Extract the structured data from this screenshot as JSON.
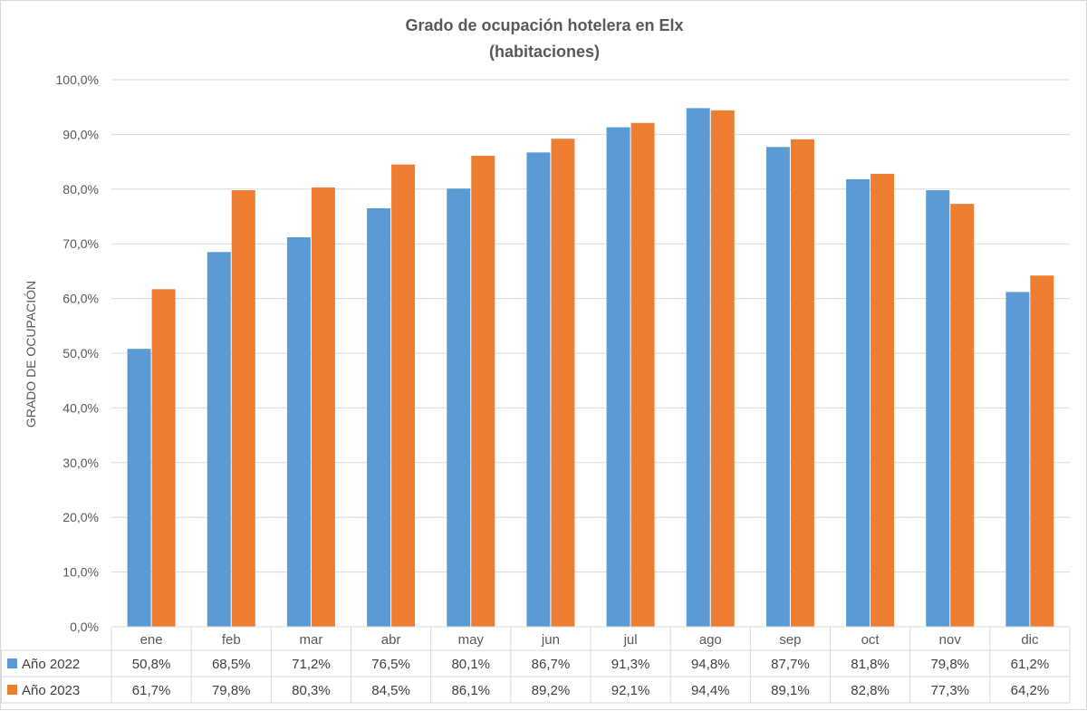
{
  "chart_data": {
    "type": "bar",
    "title": "Grado de ocupación hotelera en Elx",
    "subtitle": "(habitaciones)",
    "ylabel": "GRADO DE OCUPACIÓN",
    "ylim": [
      0,
      100
    ],
    "yticks": [
      "0,0%",
      "10,0%",
      "20,0%",
      "30,0%",
      "40,0%",
      "50,0%",
      "60,0%",
      "70,0%",
      "80,0%",
      "90,0%",
      "100,0%"
    ],
    "categories": [
      "ene",
      "feb",
      "mar",
      "abr",
      "may",
      "jun",
      "jul",
      "ago",
      "sep",
      "oct",
      "nov",
      "dic"
    ],
    "series": [
      {
        "name": "Año 2022",
        "color": "#5b9bd5",
        "values": [
          50.8,
          68.5,
          71.2,
          76.5,
          80.1,
          86.7,
          91.3,
          94.8,
          87.7,
          81.8,
          79.8,
          61.2
        ],
        "labels": [
          "50,8%",
          "68,5%",
          "71,2%",
          "76,5%",
          "80,1%",
          "86,7%",
          "91,3%",
          "94,8%",
          "87,7%",
          "81,8%",
          "79,8%",
          "61,2%"
        ]
      },
      {
        "name": "Año 2023",
        "color": "#ed7d31",
        "values": [
          61.7,
          79.8,
          80.3,
          84.5,
          86.1,
          89.2,
          92.1,
          94.4,
          89.1,
          82.8,
          77.3,
          64.2
        ],
        "labels": [
          "61,7%",
          "79,8%",
          "80,3%",
          "84,5%",
          "86,1%",
          "89,2%",
          "92,1%",
          "94,4%",
          "89,1%",
          "82,8%",
          "77,3%",
          "64,2%"
        ]
      }
    ],
    "grid": true,
    "data_table": true
  }
}
